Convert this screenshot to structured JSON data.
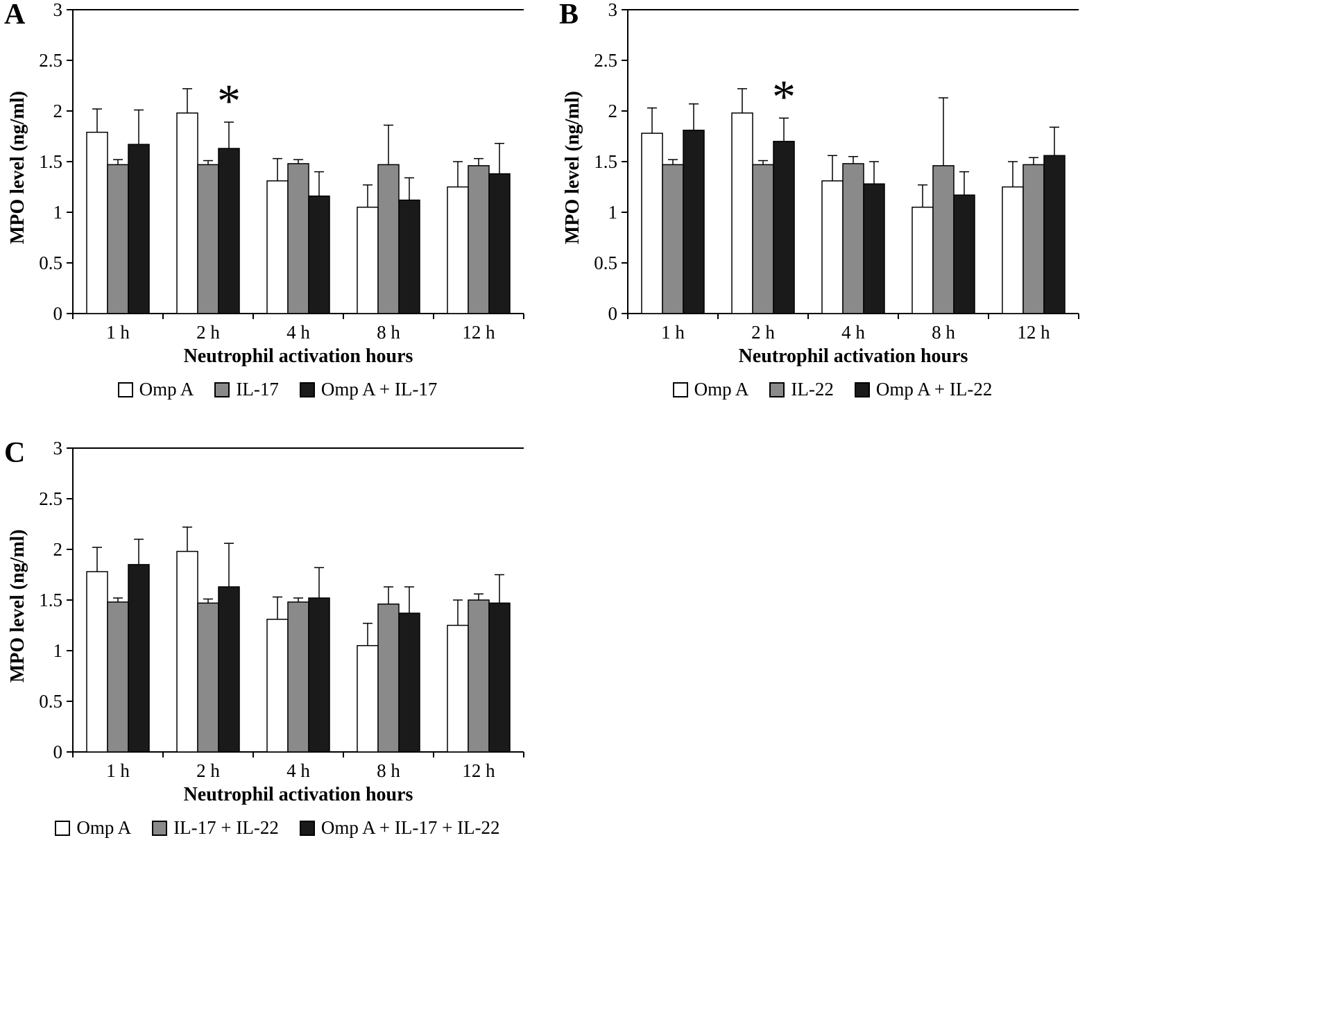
{
  "figure": {
    "description": "Three-panel bar figure of MPO levels over neutrophil activation hours"
  },
  "chart_data": [
    {
      "type": "bar",
      "panel": "A",
      "xlabel": "Neutrophil activation hours",
      "ylabel": "MPO level (ng/ml)",
      "ylim": [
        0,
        3
      ],
      "yticks": [
        0,
        0.5,
        1,
        1.5,
        2,
        2.5,
        3
      ],
      "categories": [
        "1 h",
        "2 h",
        "4 h",
        "8 h",
        "12 h"
      ],
      "series": [
        {
          "name": "Omp A",
          "color": "#ffffff",
          "values": [
            1.79,
            1.98,
            1.31,
            1.05,
            1.25
          ],
          "errors": [
            0.23,
            0.24,
            0.22,
            0.22,
            0.25
          ]
        },
        {
          "name": "IL-17",
          "color": "#8a8a8a",
          "values": [
            1.47,
            1.47,
            1.48,
            1.47,
            1.46
          ],
          "errors": [
            0.05,
            0.04,
            0.04,
            0.39,
            0.07
          ]
        },
        {
          "name": "Omp A + IL-17",
          "color": "#1a1a1a",
          "values": [
            1.67,
            1.63,
            1.16,
            1.12,
            1.38
          ],
          "errors": [
            0.34,
            0.26,
            0.24,
            0.22,
            0.3
          ]
        }
      ],
      "annotations": [
        {
          "text": "*",
          "category": "2 h",
          "series": 2
        }
      ],
      "legend_position": "bottom"
    },
    {
      "type": "bar",
      "panel": "B",
      "xlabel": "Neutrophil activation hours",
      "ylabel": "MPO level (ng/ml)",
      "ylim": [
        0,
        3
      ],
      "yticks": [
        0,
        0.5,
        1,
        1.5,
        2,
        2.5,
        3
      ],
      "categories": [
        "1 h",
        "2 h",
        "4 h",
        "8 h",
        "12 h"
      ],
      "series": [
        {
          "name": "Omp A",
          "color": "#ffffff",
          "values": [
            1.78,
            1.98,
            1.31,
            1.05,
            1.25
          ],
          "errors": [
            0.25,
            0.24,
            0.25,
            0.22,
            0.25
          ]
        },
        {
          "name": "IL-22",
          "color": "#8a8a8a",
          "values": [
            1.47,
            1.47,
            1.48,
            1.46,
            1.47
          ],
          "errors": [
            0.05,
            0.04,
            0.07,
            0.67,
            0.07
          ]
        },
        {
          "name": "Omp A + IL-22",
          "color": "#1a1a1a",
          "values": [
            1.81,
            1.7,
            1.28,
            1.17,
            1.56
          ],
          "errors": [
            0.26,
            0.23,
            0.22,
            0.23,
            0.28
          ]
        }
      ],
      "annotations": [
        {
          "text": "*",
          "category": "2 h",
          "series": 2
        }
      ],
      "legend_position": "bottom"
    },
    {
      "type": "bar",
      "panel": "C",
      "xlabel": "Neutrophil activation hours",
      "ylabel": "MPO level (ng/ml)",
      "ylim": [
        0,
        3
      ],
      "yticks": [
        0,
        0.5,
        1,
        1.5,
        2,
        2.5,
        3
      ],
      "categories": [
        "1 h",
        "2 h",
        "4 h",
        "8 h",
        "12 h"
      ],
      "series": [
        {
          "name": "Omp A",
          "color": "#ffffff",
          "values": [
            1.78,
            1.98,
            1.31,
            1.05,
            1.25
          ],
          "errors": [
            0.24,
            0.24,
            0.22,
            0.22,
            0.25
          ]
        },
        {
          "name": "IL-17 + IL-22",
          "color": "#8a8a8a",
          "values": [
            1.48,
            1.47,
            1.48,
            1.46,
            1.5
          ],
          "errors": [
            0.04,
            0.04,
            0.04,
            0.17,
            0.06
          ]
        },
        {
          "name": "Omp A + IL-17 + IL-22",
          "color": "#1a1a1a",
          "values": [
            1.85,
            1.63,
            1.52,
            1.37,
            1.47
          ],
          "errors": [
            0.25,
            0.43,
            0.3,
            0.26,
            0.28
          ]
        }
      ],
      "annotations": [],
      "legend_position": "bottom"
    }
  ]
}
